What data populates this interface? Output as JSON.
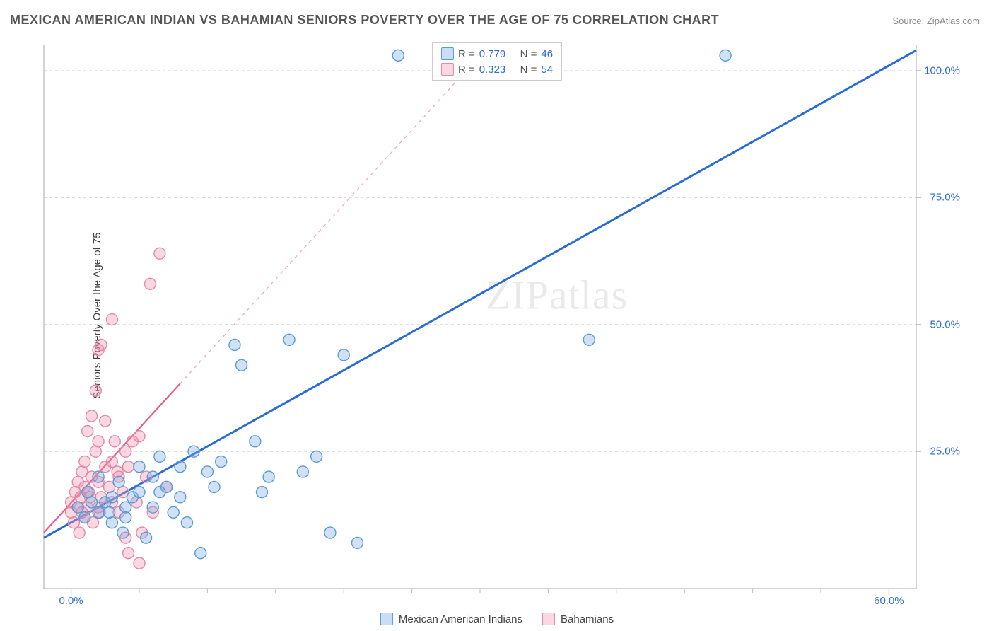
{
  "title": "MEXICAN AMERICAN INDIAN VS BAHAMIAN SENIORS POVERTY OVER THE AGE OF 75 CORRELATION CHART",
  "source_label": "Source: ",
  "source_name": "ZipAtlas.com",
  "ylabel": "Seniors Poverty Over the Age of 75",
  "watermark": "ZIPatlas",
  "chart": {
    "type": "scatter",
    "xlim": [
      -2,
      62
    ],
    "ylim": [
      -2,
      105
    ],
    "x_ticks": [
      0,
      60
    ],
    "x_tick_labels": [
      "0.0%",
      "60.0%"
    ],
    "y_ticks": [
      25,
      50,
      75,
      100
    ],
    "y_tick_labels": [
      "25.0%",
      "50.0%",
      "75.0%",
      "100.0%"
    ],
    "y_grid": [
      25,
      50,
      75,
      100
    ],
    "x_minor_ticks": [
      5,
      10,
      15,
      20,
      25,
      30,
      35,
      40,
      45,
      50,
      55
    ],
    "background_color": "#ffffff",
    "grid_color": "#d8d8d8",
    "axis_color": "#bbbbbb",
    "marker_radius": 8,
    "marker_stroke_width": 1.4,
    "series": [
      {
        "name": "Mexican American Indians",
        "color_fill": "rgba(120,170,230,0.35)",
        "color_stroke": "#5a9bd4",
        "regression": {
          "x1": -2,
          "y1": 8,
          "x2": 62,
          "y2": 104,
          "color": "#2b6cd4",
          "width": 3,
          "dash": "none"
        },
        "R": "0.779",
        "N": "46",
        "points": [
          [
            0.5,
            14
          ],
          [
            1,
            12
          ],
          [
            1.2,
            17
          ],
          [
            1.5,
            15
          ],
          [
            2,
            13
          ],
          [
            2,
            20
          ],
          [
            2.5,
            15
          ],
          [
            3,
            11
          ],
          [
            3,
            16
          ],
          [
            3.5,
            19
          ],
          [
            4,
            14
          ],
          [
            4,
            12
          ],
          [
            4.5,
            16
          ],
          [
            5,
            17
          ],
          [
            5.5,
            8
          ],
          [
            6,
            20
          ],
          [
            6,
            14
          ],
          [
            6.5,
            24
          ],
          [
            7,
            18
          ],
          [
            7.5,
            13
          ],
          [
            8,
            22
          ],
          [
            8,
            16
          ],
          [
            8.5,
            11
          ],
          [
            9,
            25
          ],
          [
            9.5,
            5
          ],
          [
            10,
            21
          ],
          [
            10.5,
            18
          ],
          [
            11,
            23
          ],
          [
            12,
            46
          ],
          [
            12.5,
            42
          ],
          [
            13.5,
            27
          ],
          [
            14,
            17
          ],
          [
            14.5,
            20
          ],
          [
            16,
            47
          ],
          [
            17,
            21
          ],
          [
            18,
            24
          ],
          [
            19,
            9
          ],
          [
            20,
            44
          ],
          [
            21,
            7
          ],
          [
            24,
            103
          ],
          [
            38,
            47
          ],
          [
            48,
            103
          ],
          [
            5,
            22
          ],
          [
            6.5,
            17
          ],
          [
            3.8,
            9
          ],
          [
            2.8,
            13
          ]
        ]
      },
      {
        "name": "Bahamians",
        "color_fill": "rgba(240,140,170,0.35)",
        "color_stroke": "#e08aa8",
        "regression": {
          "x1": -2,
          "y1": 9,
          "x2": 30,
          "y2": 103,
          "color": "#e85a8a",
          "width": 2.2,
          "dash": "5,5",
          "solid_until_x": 8
        },
        "R": "0.323",
        "N": "54",
        "points": [
          [
            0,
            13
          ],
          [
            0,
            15
          ],
          [
            0.2,
            11
          ],
          [
            0.3,
            17
          ],
          [
            0.5,
            14
          ],
          [
            0.5,
            19
          ],
          [
            0.6,
            9
          ],
          [
            0.7,
            16
          ],
          [
            0.8,
            21
          ],
          [
            1,
            12
          ],
          [
            1,
            18
          ],
          [
            1,
            23
          ],
          [
            1.2,
            14
          ],
          [
            1.2,
            29
          ],
          [
            1.4,
            16
          ],
          [
            1.5,
            20
          ],
          [
            1.5,
            32
          ],
          [
            1.6,
            11
          ],
          [
            1.8,
            25
          ],
          [
            1.8,
            37
          ],
          [
            2,
            14
          ],
          [
            2,
            19
          ],
          [
            2,
            27
          ],
          [
            2,
            45
          ],
          [
            2.2,
            16
          ],
          [
            2.2,
            46
          ],
          [
            2.5,
            22
          ],
          [
            2.5,
            31
          ],
          [
            2.8,
            18
          ],
          [
            3,
            15
          ],
          [
            3,
            23
          ],
          [
            3,
            51
          ],
          [
            3.2,
            27
          ],
          [
            3.5,
            13
          ],
          [
            3.5,
            20
          ],
          [
            3.8,
            17
          ],
          [
            4,
            25
          ],
          [
            4,
            8
          ],
          [
            4.2,
            22
          ],
          [
            4.5,
            27
          ],
          [
            4.8,
            15
          ],
          [
            5,
            28
          ],
          [
            5.2,
            9
          ],
          [
            5.5,
            20
          ],
          [
            5.8,
            58
          ],
          [
            6,
            13
          ],
          [
            6.5,
            64
          ],
          [
            7,
            18
          ],
          [
            4.2,
            5
          ],
          [
            5,
            3
          ],
          [
            0.8,
            13
          ],
          [
            1.3,
            17
          ],
          [
            2.1,
            13
          ],
          [
            3.4,
            21
          ]
        ]
      }
    ]
  },
  "legend_top": [
    {
      "swatch": "blue",
      "R_label": "R =",
      "R": "0.779",
      "N_label": "N =",
      "N": "46"
    },
    {
      "swatch": "pink",
      "R_label": "R =",
      "R": "0.323",
      "N_label": "N =",
      "N": "54"
    }
  ],
  "legend_bottom": [
    {
      "swatch": "blue",
      "label": "Mexican American Indians"
    },
    {
      "swatch": "pink",
      "label": "Bahamians"
    }
  ]
}
